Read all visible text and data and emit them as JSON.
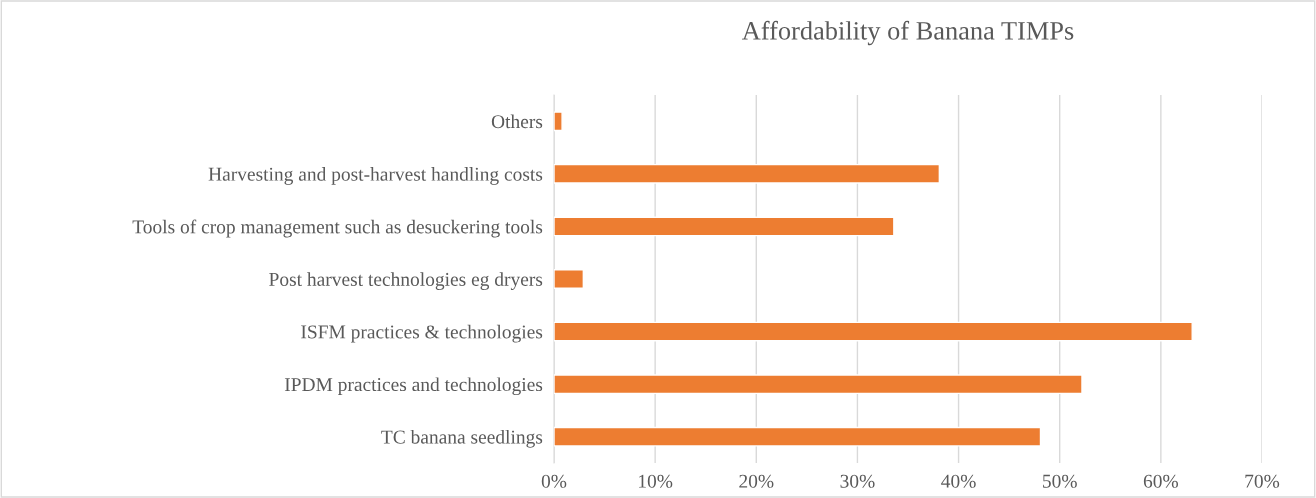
{
  "chart_data": {
    "type": "bar",
    "orientation": "horizontal",
    "title": "Affordability of Banana TIMPs",
    "categories": [
      "Others",
      "Harvesting and post-harvest handling costs",
      "Tools of crop management such as desuckering tools",
      "Post harvest technologies eg dryers",
      "ISFM practices & technologies",
      "IPDM practices and technologies",
      "TC banana seedlings"
    ],
    "values": [
      0.8,
      38.1,
      33.6,
      2.9,
      63.1,
      52.2,
      48.1
    ],
    "color": "#ed7d31",
    "xlim": [
      0,
      70
    ],
    "xticks": [
      {
        "value": 0,
        "label": "0%"
      },
      {
        "value": 10,
        "label": "10%"
      },
      {
        "value": 20,
        "label": "20%"
      },
      {
        "value": 30,
        "label": "30%"
      },
      {
        "value": 40,
        "label": "40%"
      },
      {
        "value": 50,
        "label": "50%"
      },
      {
        "value": 60,
        "label": "60%"
      },
      {
        "value": 70,
        "label": "70%"
      }
    ],
    "grid": "x"
  }
}
